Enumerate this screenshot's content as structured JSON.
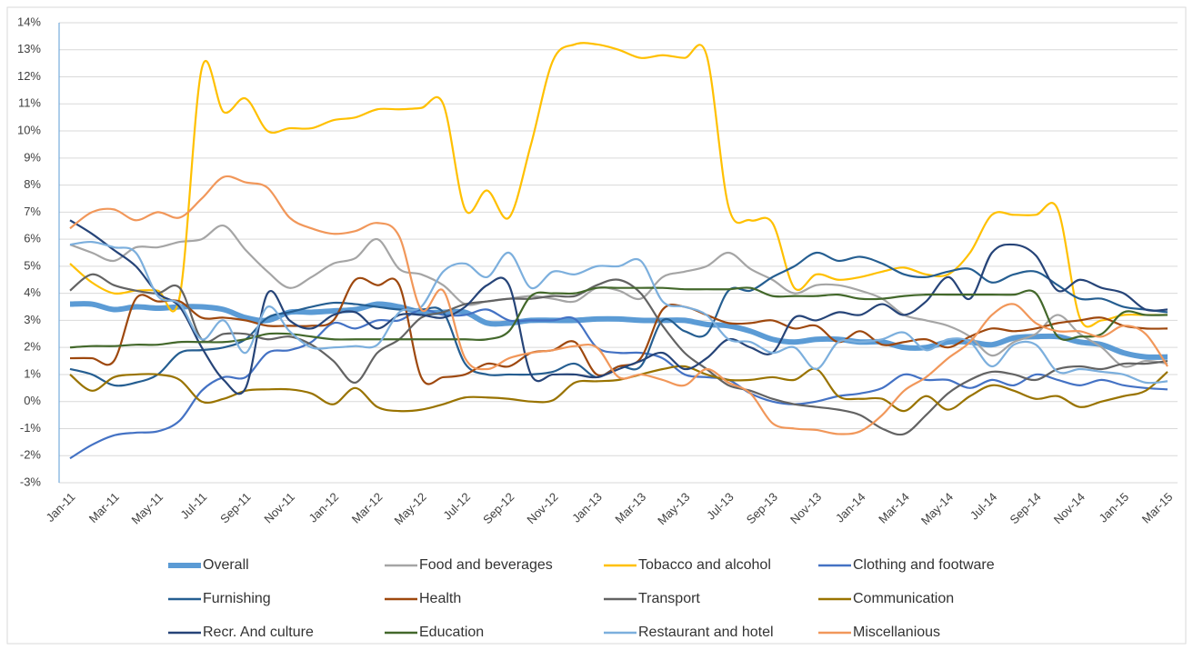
{
  "chart_data": {
    "type": "line",
    "categories": [
      "Jan-11",
      null,
      "Mar-11",
      null,
      "May-11",
      null,
      "Jul-11",
      null,
      "Sep-11",
      null,
      "Nov-11",
      null,
      "Jan-12",
      null,
      "Mar-12",
      null,
      "May-12",
      null,
      "Jul-12",
      null,
      "Sep-12",
      null,
      "Nov-12",
      null,
      "Jan-13",
      null,
      "Mar-13",
      null,
      "May-13",
      null,
      "Jul-13",
      null,
      "Sep-13",
      null,
      "Nov-13",
      null,
      "Jan-14",
      null,
      "Mar-14",
      null,
      "May-14",
      null,
      "Jul-14",
      null,
      "Sep-14",
      null,
      "Nov-14",
      null,
      "Jan-15",
      null,
      "Mar-15"
    ],
    "ylim": [
      -3,
      14
    ],
    "yticks": [
      {
        "value": -3,
        "label": "-3%"
      },
      {
        "value": -2,
        "label": "-2%"
      },
      {
        "value": -1,
        "label": "-1%"
      },
      {
        "value": 0,
        "label": "0%"
      },
      {
        "value": 1,
        "label": "1%"
      },
      {
        "value": 2,
        "label": "2%"
      },
      {
        "value": 3,
        "label": "3%"
      },
      {
        "value": 4,
        "label": "4%"
      },
      {
        "value": 5,
        "label": "5%"
      },
      {
        "value": 6,
        "label": "6%"
      },
      {
        "value": 7,
        "label": "7%"
      },
      {
        "value": 8,
        "label": "8%"
      },
      {
        "value": 9,
        "label": "9%"
      },
      {
        "value": 10,
        "label": "10%"
      },
      {
        "value": 11,
        "label": "11%"
      },
      {
        "value": 12,
        "label": "12%"
      },
      {
        "value": 13,
        "label": "13%"
      },
      {
        "value": 14,
        "label": "14%"
      }
    ],
    "grid": true,
    "legend": "bottom",
    "series": [
      {
        "name": "Overall",
        "color": "#5b9bd5",
        "values": [
          3.6,
          3.6,
          3.4,
          3.5,
          3.45,
          3.5,
          3.5,
          3.4,
          3.1,
          3.0,
          3.3,
          3.3,
          3.35,
          3.4,
          3.6,
          3.5,
          3.3,
          3.3,
          3.3,
          2.9,
          2.9,
          3.0,
          3.0,
          3.0,
          3.05,
          3.05,
          3.0,
          3.0,
          3.0,
          2.85,
          2.8,
          2.6,
          2.3,
          2.2,
          2.3,
          2.3,
          2.2,
          2.2,
          2.0,
          2.0,
          2.2,
          2.2,
          2.1,
          2.35,
          2.4,
          2.4,
          2.2,
          2.1,
          1.8,
          1.65,
          1.65
        ]
      },
      {
        "name": "Food and beverages",
        "color": "#a5a5a5",
        "values": [
          5.8,
          5.5,
          5.2,
          5.7,
          5.7,
          5.9,
          6.0,
          6.5,
          5.6,
          4.8,
          4.2,
          4.6,
          5.1,
          5.3,
          6.0,
          4.9,
          4.7,
          4.3,
          3.6,
          3.7,
          3.8,
          3.9,
          3.8,
          3.7,
          4.2,
          4.1,
          3.8,
          4.6,
          4.8,
          5.0,
          5.5,
          4.9,
          4.5,
          4.0,
          4.3,
          4.3,
          4.1,
          3.8,
          3.2,
          3.0,
          2.8,
          2.4,
          1.7,
          2.2,
          2.5,
          3.2,
          2.5,
          2.0,
          1.3,
          1.5,
          1.4
        ]
      },
      {
        "name": "Tobacco and alcohol",
        "color": "#ffc000",
        "values": [
          5.1,
          4.4,
          4.0,
          4.1,
          4.1,
          3.9,
          12.3,
          10.7,
          11.2,
          10.0,
          10.1,
          10.1,
          10.4,
          10.5,
          10.8,
          10.8,
          10.85,
          11.0,
          7.1,
          7.8,
          6.8,
          9.5,
          12.6,
          13.2,
          13.2,
          13.0,
          12.7,
          12.8,
          12.7,
          12.8,
          7.2,
          6.7,
          6.6,
          4.2,
          4.7,
          4.5,
          4.6,
          4.8,
          4.95,
          4.7,
          4.7,
          5.5,
          6.9,
          6.9,
          6.9,
          7.1,
          3.1,
          3.0,
          3.2,
          3.2,
          3.2
        ]
      },
      {
        "name": "Clothing and footware",
        "color": "#4472c4",
        "values": [
          -2.1,
          -1.6,
          -1.25,
          -1.15,
          -1.1,
          -0.7,
          0.4,
          0.9,
          0.9,
          1.8,
          1.9,
          2.2,
          2.9,
          2.7,
          3.0,
          3.0,
          3.4,
          3.2,
          3.2,
          3.4,
          3.0,
          3.0,
          3.0,
          3.05,
          2.0,
          1.8,
          1.8,
          1.6,
          1.0,
          0.9,
          0.8,
          0.3,
          0.0,
          -0.1,
          0.0,
          0.2,
          0.3,
          0.5,
          1.0,
          0.8,
          0.8,
          0.5,
          0.8,
          0.6,
          1.0,
          0.8,
          0.6,
          0.8,
          0.6,
          0.5,
          0.45
        ]
      },
      {
        "name": "Furnishing",
        "color": "#255e91",
        "values": [
          1.2,
          1.0,
          0.6,
          0.7,
          1.0,
          1.8,
          1.9,
          2.0,
          2.3,
          3.1,
          3.3,
          3.5,
          3.65,
          3.6,
          3.5,
          3.4,
          3.4,
          3.3,
          1.4,
          1.0,
          1.0,
          1.0,
          1.1,
          1.4,
          0.9,
          1.3,
          1.3,
          3.0,
          2.6,
          2.5,
          4.1,
          4.1,
          4.6,
          5.0,
          5.5,
          5.2,
          5.35,
          5.1,
          4.7,
          4.6,
          4.8,
          4.9,
          4.4,
          4.7,
          4.8,
          4.3,
          3.8,
          3.8,
          3.5,
          3.4,
          3.3
        ]
      },
      {
        "name": "Health",
        "color": "#9e480e",
        "values": [
          1.6,
          1.6,
          1.5,
          3.8,
          3.7,
          3.7,
          3.1,
          3.1,
          3.0,
          2.8,
          2.8,
          2.8,
          3.0,
          4.5,
          4.3,
          4.3,
          0.9,
          0.9,
          1.0,
          1.4,
          1.3,
          1.8,
          1.9,
          2.2,
          1.0,
          1.3,
          1.6,
          3.4,
          3.5,
          3.2,
          2.9,
          2.9,
          3.0,
          2.7,
          2.8,
          2.2,
          2.6,
          2.1,
          2.2,
          2.3,
          2.0,
          2.4,
          2.7,
          2.6,
          2.7,
          2.9,
          3.0,
          3.1,
          2.8,
          2.7,
          2.7
        ]
      },
      {
        "name": "Transport",
        "color": "#636363",
        "values": [
          4.1,
          4.7,
          4.3,
          4.1,
          4.0,
          4.2,
          2.3,
          2.5,
          2.5,
          2.3,
          2.4,
          2.1,
          1.5,
          0.7,
          1.8,
          2.3,
          3.1,
          3.3,
          3.6,
          3.7,
          3.8,
          3.8,
          3.9,
          3.9,
          4.3,
          4.5,
          4.0,
          2.8,
          1.8,
          1.2,
          0.6,
          0.4,
          0.1,
          -0.1,
          -0.2,
          -0.3,
          -0.5,
          -1.0,
          -1.2,
          -0.5,
          0.3,
          0.8,
          1.1,
          1.0,
          0.8,
          1.2,
          1.3,
          1.2,
          1.4,
          1.4,
          1.5
        ]
      },
      {
        "name": "Communication",
        "color": "#997300",
        "values": [
          1.0,
          0.4,
          0.9,
          1.0,
          1.0,
          0.8,
          0.0,
          0.1,
          0.4,
          0.45,
          0.45,
          0.3,
          -0.1,
          0.5,
          -0.2,
          -0.35,
          -0.3,
          -0.1,
          0.15,
          0.15,
          0.1,
          0.0,
          0.05,
          0.7,
          0.75,
          0.8,
          1.0,
          1.2,
          1.3,
          1.0,
          0.8,
          0.8,
          0.9,
          0.8,
          1.2,
          0.2,
          0.1,
          0.1,
          -0.35,
          0.2,
          -0.3,
          0.2,
          0.6,
          0.4,
          0.1,
          0.2,
          -0.2,
          0.0,
          0.2,
          0.4,
          1.1
        ]
      },
      {
        "name": "Recr. And culture",
        "color": "#264478",
        "values": [
          6.7,
          6.2,
          5.6,
          5.0,
          4.0,
          3.5,
          2.0,
          0.8,
          0.5,
          4.0,
          3.0,
          2.7,
          3.2,
          3.3,
          2.7,
          3.2,
          3.2,
          3.1,
          3.5,
          4.3,
          4.3,
          1.0,
          1.0,
          1.0,
          0.9,
          1.2,
          1.5,
          1.8,
          1.2,
          1.6,
          2.3,
          2.0,
          1.8,
          3.1,
          3.0,
          3.3,
          3.2,
          3.6,
          3.2,
          3.7,
          4.6,
          3.8,
          5.5,
          5.8,
          5.4,
          4.1,
          4.5,
          4.2,
          4.0,
          3.4,
          3.4
        ]
      },
      {
        "name": "Education",
        "color": "#43682b",
        "values": [
          2.0,
          2.05,
          2.05,
          2.1,
          2.1,
          2.2,
          2.2,
          2.2,
          2.3,
          2.5,
          2.5,
          2.4,
          2.3,
          2.3,
          2.3,
          2.3,
          2.3,
          2.3,
          2.3,
          2.3,
          2.6,
          3.9,
          4.0,
          4.0,
          4.2,
          4.2,
          4.2,
          4.2,
          4.15,
          4.15,
          4.15,
          4.2,
          3.9,
          3.9,
          3.9,
          3.95,
          3.8,
          3.8,
          3.9,
          3.95,
          3.95,
          3.95,
          3.95,
          3.95,
          4.0,
          2.4,
          2.4,
          2.5,
          3.3,
          3.2,
          3.2
        ]
      },
      {
        "name": "Restaurant and hotel",
        "color": "#7cafdd",
        "values": [
          5.8,
          5.9,
          5.7,
          5.5,
          3.9,
          3.6,
          2.3,
          3.0,
          1.8,
          3.5,
          2.6,
          2.0,
          2.0,
          2.05,
          2.1,
          3.3,
          3.5,
          4.8,
          5.1,
          4.6,
          5.5,
          4.2,
          4.8,
          4.7,
          5.0,
          5.0,
          5.2,
          3.7,
          3.5,
          3.2,
          2.3,
          2.2,
          1.8,
          2.0,
          1.2,
          2.2,
          2.2,
          2.3,
          2.55,
          1.9,
          2.3,
          2.2,
          1.3,
          2.1,
          2.1,
          1.1,
          1.2,
          1.1,
          1.0,
          0.7,
          0.75
        ]
      },
      {
        "name": "Miscellanious",
        "color": "#f1975a",
        "values": [
          6.4,
          7.0,
          7.1,
          6.7,
          7.0,
          6.8,
          7.5,
          8.3,
          8.1,
          7.9,
          6.8,
          6.4,
          6.2,
          6.3,
          6.6,
          6.1,
          3.4,
          4.1,
          1.6,
          1.2,
          1.6,
          1.8,
          1.9,
          2.05,
          2.0,
          0.9,
          1.0,
          0.8,
          0.6,
          1.2,
          0.7,
          0.3,
          -0.8,
          -1.0,
          -1.05,
          -1.2,
          -1.1,
          -0.5,
          0.4,
          0.9,
          1.6,
          2.2,
          3.2,
          3.6,
          2.9,
          2.6,
          2.6,
          2.4,
          2.8,
          2.5,
          1.3
        ]
      }
    ]
  }
}
